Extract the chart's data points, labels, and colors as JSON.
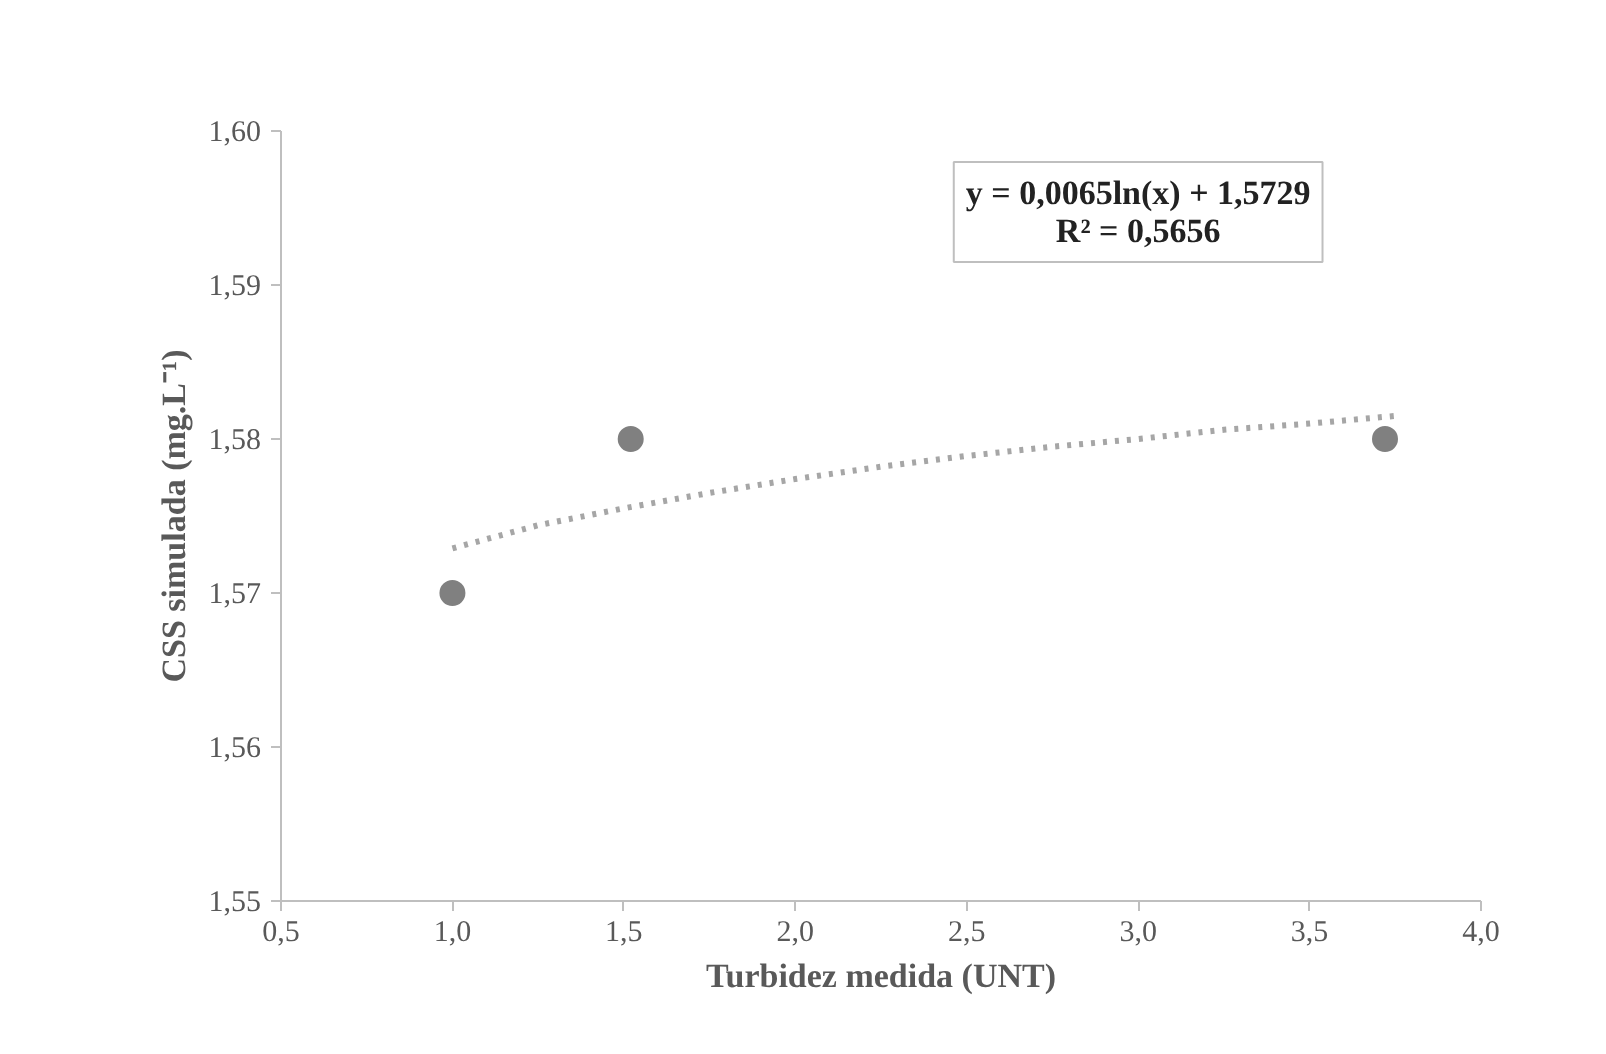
{
  "chart_data": {
    "type": "scatter",
    "xlabel": "Turbidez medida (UNT)",
    "ylabel": "CSS simulada (mg.L⁻¹)",
    "series": [
      {
        "color": "#808080",
        "x": [
          1.0,
          1.52,
          3.72
        ],
        "values": [
          1.57,
          1.58,
          1.58
        ],
        "marker": "circle"
      },
      {
        "type": "line",
        "color": "#a6a6a6",
        "line_style": "dotted",
        "marker": "none",
        "x": [
          1.0,
          1.25,
          1.5,
          1.75,
          2.0,
          2.25,
          2.5,
          2.75,
          3.0,
          3.25,
          3.5,
          3.75
        ],
        "values": [
          1.5729,
          1.5744,
          1.5755,
          1.5765,
          1.5774,
          1.5782,
          1.5789,
          1.5795,
          1.58,
          1.5806,
          1.581,
          1.5815
        ]
      }
    ],
    "xlim": [
      0.5,
      4.0
    ],
    "xticks": [
      {
        "value": 0.5,
        "label": "0,5"
      },
      {
        "value": 1.0,
        "label": "1,0"
      },
      {
        "value": 1.5,
        "label": "1,5"
      },
      {
        "value": 2.0,
        "label": "2,0"
      },
      {
        "value": 2.5,
        "label": "2,5"
      },
      {
        "value": 3.0,
        "label": "3,0"
      },
      {
        "value": 3.5,
        "label": "3,5"
      },
      {
        "value": 4.0,
        "label": "4,0"
      }
    ],
    "ylim": [
      1.55,
      1.6
    ],
    "yticks": [
      {
        "value": 1.55,
        "label": "1,55"
      },
      {
        "value": 1.56,
        "label": "1,56"
      },
      {
        "value": 1.57,
        "label": "1,57"
      },
      {
        "value": 1.58,
        "label": "1,58"
      },
      {
        "value": 1.59,
        "label": "1,59"
      },
      {
        "value": 1.6,
        "label": "1,60"
      }
    ],
    "grid": false,
    "annotations": [
      "y = 0,0065ln(x) + 1,5729\nR² = 0,5656"
    ]
  }
}
